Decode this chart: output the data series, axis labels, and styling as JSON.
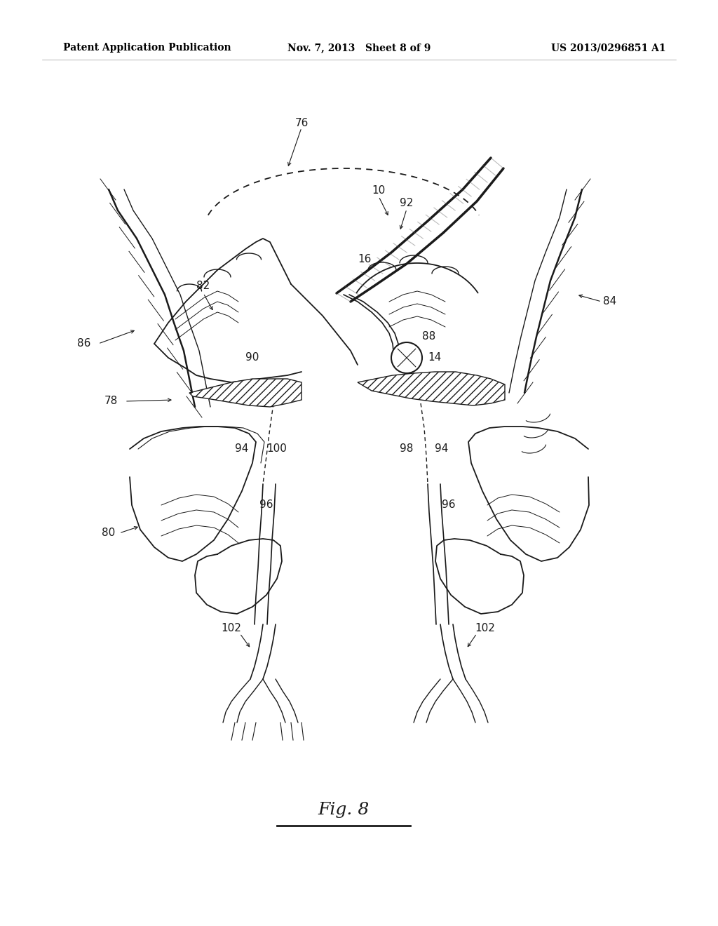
{
  "background_color": "#ffffff",
  "header_left": "Patent Application Publication",
  "header_mid": "Nov. 7, 2013   Sheet 8 of 9",
  "header_right": "US 2013/0296851 A1",
  "figure_label": "Fig. 8",
  "label_fontsize": 11,
  "header_fontsize": 10,
  "fig_label_fontsize": 18
}
